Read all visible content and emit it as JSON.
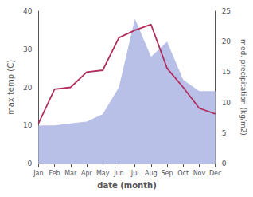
{
  "chart_data": {
    "type": "line",
    "categories": [
      "Jan",
      "Feb",
      "Mar",
      "Apr",
      "May",
      "Jun",
      "Jul",
      "Aug",
      "Sep",
      "Oct",
      "Nov",
      "Dec"
    ],
    "series": [
      {
        "type": "area",
        "color": "#b8c0e8",
        "values": [
          10.0,
          10.0,
          10.5,
          11.0,
          13.0,
          20.0,
          38.0,
          28.0,
          32.0,
          22.0,
          19.0,
          19.0
        ]
      },
      {
        "type": "line",
        "color": "#b03060",
        "values": [
          10.5,
          19.5,
          20.0,
          24.0,
          24.5,
          33.0,
          35.0,
          36.5,
          25.0,
          20.0,
          14.5,
          13.0
        ]
      }
    ],
    "xlabel": "date (month)",
    "ylabel": "max temp (C)",
    "y2label": "med. precipitation (kg/m2)",
    "ylim": [
      0,
      40
    ],
    "yticks": [
      0,
      10,
      20,
      30,
      40
    ],
    "y2lim": [
      0,
      25
    ],
    "y2ticks": [
      0,
      5,
      10,
      15,
      20,
      25
    ],
    "grid": false
  }
}
